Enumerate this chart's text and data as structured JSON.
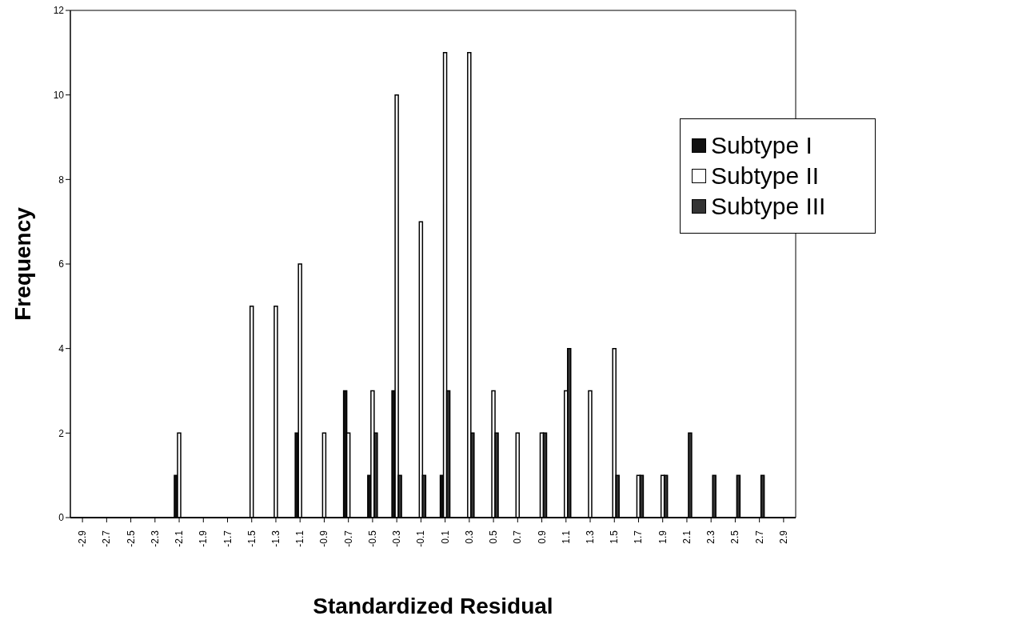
{
  "chart_data": {
    "type": "bar",
    "xlabel": "Standardized Residual",
    "ylabel": "Frequency",
    "categories": [
      "-2.9",
      "-2.7",
      "-2.5",
      "-2.3",
      "-2.1",
      "-1.9",
      "-1.7",
      "-1.5",
      "-1.3",
      "-1.1",
      "-0.9",
      "-0.7",
      "-0.5",
      "-0.3",
      "-0.1",
      "0.1",
      "0.3",
      "0.5",
      "0.7",
      "0.9",
      "1.1",
      "1.3",
      "1.5",
      "1.7",
      "1.9",
      "2.1",
      "2.3",
      "2.5",
      "2.7",
      "2.9"
    ],
    "series": [
      {
        "name": "Subtype I",
        "color": "#111111",
        "values": [
          0,
          0,
          0,
          0,
          1,
          0,
          0,
          0,
          0,
          2,
          0,
          3,
          1,
          3,
          0,
          1,
          0,
          0,
          0,
          0,
          0,
          0,
          0,
          0,
          0,
          0,
          0,
          0,
          0,
          0
        ]
      },
      {
        "name": "Subtype II",
        "color": "#ffffff",
        "values": [
          0,
          0,
          0,
          0,
          2,
          0,
          0,
          5,
          5,
          6,
          2,
          2,
          3,
          10,
          7,
          11,
          11,
          3,
          2,
          2,
          3,
          3,
          4,
          1,
          1,
          0,
          0,
          0,
          0,
          0
        ]
      },
      {
        "name": "Subtype III",
        "color": "#333333",
        "values": [
          0,
          0,
          0,
          0,
          0,
          0,
          0,
          0,
          0,
          0,
          0,
          0,
          2,
          1,
          1,
          3,
          2,
          2,
          0,
          2,
          4,
          0,
          1,
          1,
          1,
          2,
          1,
          1,
          1,
          0
        ]
      }
    ],
    "ylim": [
      0,
      12
    ],
    "yticks": [
      0,
      2,
      4,
      6,
      8,
      10,
      12
    ],
    "grid": false,
    "legend": "top right"
  }
}
